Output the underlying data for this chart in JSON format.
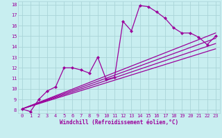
{
  "xlabel": "Windchill (Refroidissement éolien,°C)",
  "bg_color": "#c8eef0",
  "line_color": "#9b009b",
  "grid_color": "#aad4d8",
  "xlim": [
    -0.5,
    23.5
  ],
  "ylim": [
    7.7,
    18.3
  ],
  "xticks": [
    0,
    1,
    2,
    3,
    4,
    5,
    6,
    7,
    8,
    9,
    10,
    11,
    12,
    13,
    14,
    15,
    16,
    17,
    18,
    19,
    20,
    21,
    22,
    23
  ],
  "yticks": [
    8,
    9,
    10,
    11,
    12,
    13,
    14,
    15,
    16,
    17,
    18
  ],
  "series": [
    {
      "x": [
        0,
        1,
        2,
        3,
        4,
        5,
        6,
        7,
        8,
        9,
        10,
        11,
        12,
        13,
        14,
        15,
        16,
        17,
        18,
        19,
        20,
        21,
        22,
        23
      ],
      "y": [
        8.1,
        7.85,
        9.0,
        9.8,
        10.2,
        12.0,
        12.0,
        11.8,
        11.5,
        13.0,
        10.9,
        11.1,
        16.4,
        15.5,
        17.9,
        17.8,
        17.3,
        16.7,
        15.8,
        15.3,
        15.3,
        14.9,
        14.2,
        15.0
      ]
    },
    {
      "x": [
        0,
        23
      ],
      "y": [
        8.1,
        15.3
      ]
    },
    {
      "x": [
        0,
        23
      ],
      "y": [
        8.1,
        14.8
      ]
    },
    {
      "x": [
        0,
        23
      ],
      "y": [
        8.1,
        14.3
      ]
    },
    {
      "x": [
        0,
        23
      ],
      "y": [
        8.1,
        13.8
      ]
    }
  ],
  "marker": "D",
  "markersize": 2.5,
  "linewidth": 0.9
}
